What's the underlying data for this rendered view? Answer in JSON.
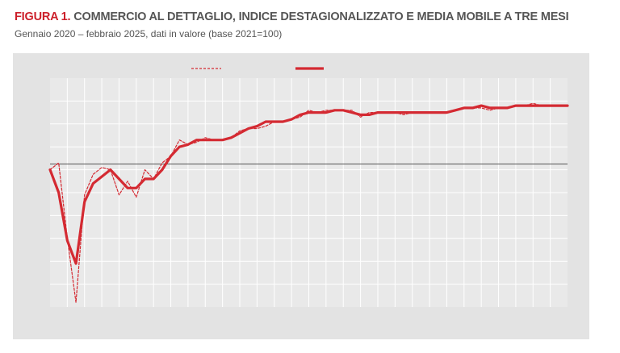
{
  "header": {
    "figure_label": "FIGURA 1.",
    "title": "COMMERCIO AL DETTAGLIO, INDICE DESTAGIONALIZZATO E MEDIA MOBILE A TRE MESI",
    "subtitle": "Gennaio 2020 – febbraio 2025, dati in valore (base 2021=100)"
  },
  "colors": {
    "series": "#d42a32",
    "panel": "#e3e3e3",
    "plot": "#e9e9e9",
    "grid": "#ffffff",
    "reference_line": "#555555"
  },
  "chart_data": {
    "type": "line",
    "xlim": [
      0,
      60
    ],
    "ylim": [
      0,
      10
    ],
    "reference_y": 6.25,
    "grid": true,
    "legend": "top-center",
    "series": [
      {
        "style": "dashed",
        "x": [
          0,
          1,
          2,
          3,
          4,
          5,
          6,
          7,
          8,
          9,
          10,
          11,
          12,
          13,
          14,
          15,
          16,
          17,
          18,
          19,
          20,
          21,
          22,
          23,
          24,
          25,
          26,
          27,
          28,
          29,
          30,
          31,
          32,
          33,
          34,
          35,
          36,
          37,
          38,
          39,
          40,
          41,
          42,
          43,
          44,
          45,
          46,
          47,
          48,
          49,
          50,
          51,
          52,
          53,
          54,
          55,
          56,
          57,
          58,
          59,
          60
        ],
        "y": [
          6.0,
          6.3,
          3.0,
          0.2,
          4.9,
          5.8,
          6.1,
          6.0,
          4.9,
          5.5,
          4.8,
          6.0,
          5.6,
          6.3,
          6.6,
          7.3,
          7.1,
          7.2,
          7.4,
          7.3,
          7.3,
          7.4,
          7.7,
          7.8,
          7.8,
          7.9,
          8.1,
          8.1,
          8.2,
          8.3,
          8.6,
          8.5,
          8.6,
          8.6,
          8.6,
          8.6,
          8.3,
          8.5,
          8.5,
          8.5,
          8.5,
          8.4,
          8.5,
          8.5,
          8.5,
          8.5,
          8.5,
          8.6,
          8.7,
          8.7,
          8.7,
          8.6,
          8.7,
          8.7,
          8.8,
          8.8,
          8.9,
          8.8,
          8.8,
          8.8,
          8.8
        ]
      },
      {
        "style": "solid",
        "x": [
          0,
          1,
          2,
          3,
          4,
          5,
          6,
          7,
          8,
          9,
          10,
          11,
          12,
          13,
          14,
          15,
          16,
          17,
          18,
          19,
          20,
          21,
          22,
          23,
          24,
          25,
          26,
          27,
          28,
          29,
          30,
          31,
          32,
          33,
          34,
          35,
          36,
          37,
          38,
          39,
          40,
          41,
          42,
          43,
          44,
          45,
          46,
          47,
          48,
          49,
          50,
          51,
          52,
          53,
          54,
          55,
          56,
          57,
          58,
          59,
          60
        ],
        "y": [
          6.0,
          5.0,
          2.9,
          1.9,
          4.6,
          5.4,
          5.7,
          6.0,
          5.6,
          5.2,
          5.2,
          5.6,
          5.6,
          6.0,
          6.6,
          7.0,
          7.1,
          7.3,
          7.3,
          7.3,
          7.3,
          7.4,
          7.6,
          7.8,
          7.9,
          8.1,
          8.1,
          8.1,
          8.2,
          8.4,
          8.5,
          8.5,
          8.5,
          8.6,
          8.6,
          8.5,
          8.4,
          8.4,
          8.5,
          8.5,
          8.5,
          8.5,
          8.5,
          8.5,
          8.5,
          8.5,
          8.5,
          8.6,
          8.7,
          8.7,
          8.8,
          8.7,
          8.7,
          8.7,
          8.8,
          8.8,
          8.8,
          8.8,
          8.8,
          8.8,
          8.8
        ]
      }
    ]
  }
}
